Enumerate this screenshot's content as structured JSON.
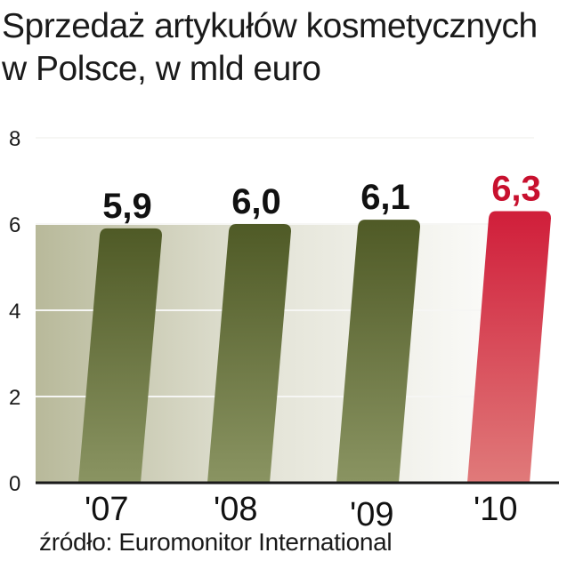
{
  "chart_data": {
    "type": "bar",
    "title": "Sprzedaż artykułów kosmetycznych w Polsce, w mld euro",
    "title_lines": [
      "Sprzedaż artykułów kosmetycznych",
      "w Polsce, w mld euro"
    ],
    "categories": [
      "'07",
      "'08",
      "'09",
      "'10"
    ],
    "values": [
      5.9,
      6.0,
      6.1,
      6.3
    ],
    "value_labels": [
      "5,9",
      "6,0",
      "6,1",
      "6,3"
    ],
    "bar_colors": [
      "#5a6330",
      "#5a6330",
      "#5a6330",
      "#d21f3c"
    ],
    "label_colors": [
      "#111111",
      "#111111",
      "#111111",
      "#c8102e"
    ],
    "ylim": [
      0,
      8
    ],
    "yticks": [
      0,
      2,
      4,
      6,
      8
    ],
    "ytick_labels": [
      "0",
      "2",
      "4",
      "6",
      "8"
    ],
    "xlabel": "",
    "ylabel": "",
    "grid": true,
    "source": "źródło: Euromonitor International"
  }
}
